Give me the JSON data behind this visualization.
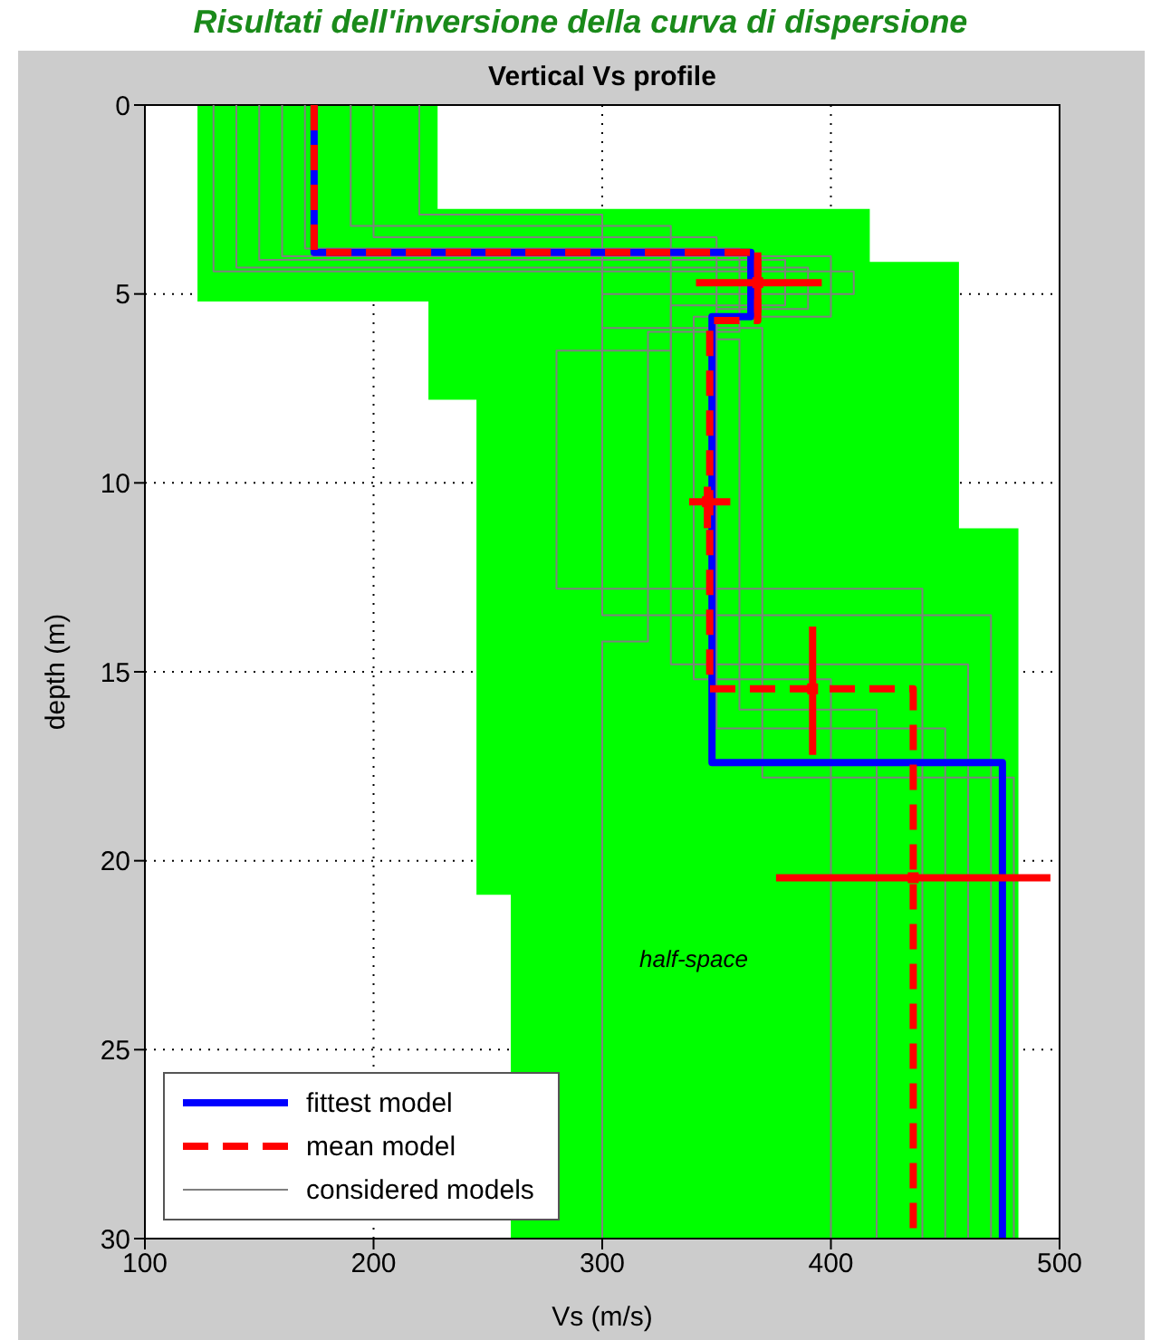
{
  "chart_data": {
    "type": "line",
    "title": "Risultati dell'inversione della curva di dispersione",
    "subtitle": "Vertical Vs profile",
    "xlabel": "Vs (m/s)",
    "ylabel": "depth (m)",
    "xlim": [
      100,
      500
    ],
    "xticks": [
      100,
      200,
      300,
      400,
      500
    ],
    "ylim": [
      30,
      0
    ],
    "yticks": [
      0,
      5,
      10,
      15,
      20,
      25,
      30
    ],
    "grid": true,
    "legend": "bottom left",
    "annotations": [
      "half-space"
    ],
    "series": [
      {
        "type": "area",
        "color": "#00ff00",
        "x": [
          123,
          123,
          224,
          224,
          245,
          245,
          260,
          260,
          482,
          482,
          456,
          456,
          417,
          417,
          228,
          228
        ],
        "values": [
          0,
          5.2,
          5.2,
          7.8,
          7.8,
          20.9,
          20.9,
          30,
          30,
          11.2,
          11.2,
          4.15,
          4.15,
          2.75,
          2.75,
          0
        ]
      },
      {
        "name": "fittest model",
        "color": "#0000ff",
        "x": [
          174,
          174,
          365,
          365,
          348,
          348,
          475,
          475
        ],
        "values": [
          0,
          3.9,
          3.9,
          5.6,
          5.6,
          17.4,
          17.4,
          30
        ]
      },
      {
        "name": "mean model",
        "color": "#ff0000",
        "line_style": "dashed",
        "x": [
          174,
          174,
          368,
          368,
          347,
          347,
          436,
          436
        ],
        "values": [
          0,
          3.9,
          3.9,
          5.7,
          5.7,
          15.45,
          15.45,
          30
        ]
      },
      {
        "name": "considered models",
        "color": "#808080",
        "x": [
          150,
          150,
          380,
          380,
          330,
          330,
          460,
          460
        ],
        "values": [
          0,
          4.1,
          4.1,
          5.3,
          5.3,
          14.8,
          14.8,
          30
        ]
      },
      {
        "color": "#808080",
        "x": [
          200,
          200,
          350,
          350,
          360,
          360,
          420,
          420
        ],
        "values": [
          0,
          3.5,
          3.5,
          6.2,
          6.2,
          16,
          16,
          30
        ]
      },
      {
        "color": "#808080",
        "x": [
          130,
          130,
          410,
          410,
          300,
          300,
          470,
          470
        ],
        "values": [
          0,
          4.4,
          4.4,
          5,
          5,
          13.5,
          13.5,
          30
        ]
      },
      {
        "color": "#808080",
        "x": [
          190,
          190,
          330,
          330,
          280,
          280,
          440,
          440
        ],
        "values": [
          0,
          3.2,
          3.2,
          6.5,
          6.5,
          12.8,
          12.8,
          30
        ]
      },
      {
        "color": "#808080",
        "x": [
          160,
          160,
          400,
          400,
          340,
          340,
          400,
          400
        ],
        "values": [
          0,
          4,
          4,
          5.6,
          5.6,
          15.2,
          15.2,
          30
        ]
      },
      {
        "color": "#808080",
        "x": [
          220,
          220,
          300,
          300,
          370,
          370,
          480,
          480
        ],
        "values": [
          0,
          2.9,
          2.9,
          5.9,
          5.9,
          17.8,
          17.8,
          30
        ]
      },
      {
        "color": "#808080",
        "x": [
          170,
          170,
          360,
          360,
          320,
          320,
          300,
          300
        ],
        "values": [
          0,
          3.8,
          3.8,
          6,
          6,
          14.2,
          14.2,
          30
        ]
      },
      {
        "color": "#808080",
        "x": [
          140,
          140,
          390,
          390,
          350,
          350,
          450,
          450
        ],
        "values": [
          0,
          4.3,
          4.3,
          5.4,
          5.4,
          16.5,
          16.5,
          30
        ]
      },
      {
        "type": "scatter",
        "color": "#ff0000",
        "marker": "square",
        "x": [
          368,
          346,
          392,
          436
        ],
        "values": [
          4.7,
          10.5,
          15.45,
          20.45
        ],
        "errors": [
          [
            3.9,
            5.5
          ],
          [
            10.1,
            11.2
          ],
          [
            13.8,
            17.2
          ],
          null
        ],
        "xerrors": [
          [
            341,
            396
          ],
          [
            338,
            356
          ],
          null,
          [
            376,
            496
          ]
        ]
      }
    ]
  }
}
